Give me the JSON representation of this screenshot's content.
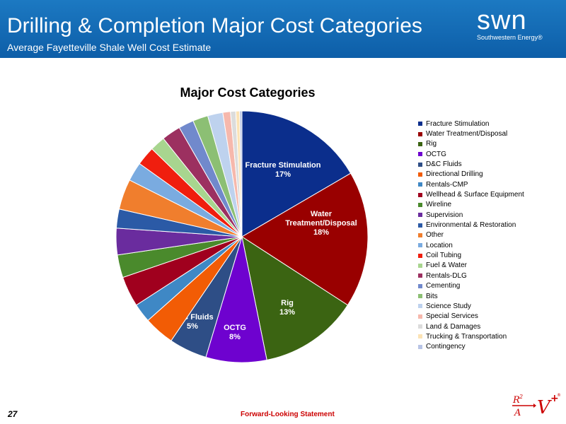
{
  "header": {
    "title": "Drilling & Completion Major Cost Categories",
    "subtitle": "Average Fayetteville Shale Well Cost Estimate",
    "logo_text": "swn",
    "logo_subtext": "Southwestern Energy®"
  },
  "colors": {
    "header_bg": "#0d5ea8",
    "footer_link": "#cc0000"
  },
  "chart_data": {
    "type": "pie",
    "title": "Major Cost Categories",
    "legend_position": "right",
    "slices": [
      {
        "name": "Fracture Stimulation",
        "value": 17,
        "color": "#0b2e8c",
        "label": "Fracture Stimulation\n17%",
        "label_color": "#ffffff"
      },
      {
        "name": "Water Treatment/Disposal",
        "value": 18,
        "color": "#990000",
        "label": "Water\nTreatment/Disposal\n18%",
        "label_color": "#ffffff"
      },
      {
        "name": "Rig",
        "value": 13,
        "color": "#3b6412",
        "label": "Rig\n13%",
        "label_color": "#ffffff"
      },
      {
        "name": "OCTG",
        "value": 8,
        "color": "#6e02cf",
        "label": "OCTG\n8%",
        "label_color": "#ffffff"
      },
      {
        "name": "D&C Fluids",
        "value": 5,
        "color": "#2e4e86",
        "label": "D&C Fluids\n5%",
        "label_color": "#ffffff"
      },
      {
        "name": "Directional Drilling",
        "value": 4,
        "color": "#f25c05",
        "label": "",
        "label_color": "#ffffff"
      },
      {
        "name": "Rentals-CMP",
        "value": 2.5,
        "color": "#3f88c5",
        "label": "",
        "label_color": "#ffffff"
      },
      {
        "name": "Wellhead & Surface Equipment",
        "value": 4,
        "color": "#a0001e",
        "label": "",
        "label_color": "#ffffff"
      },
      {
        "name": "Wireline",
        "value": 3,
        "color": "#4a8a2c",
        "label": "",
        "label_color": "#ffffff"
      },
      {
        "name": "Supervision",
        "value": 3.5,
        "color": "#6a2c9e",
        "label": "",
        "label_color": "#ffffff"
      },
      {
        "name": "Environmental & Restoration",
        "value": 2.5,
        "color": "#2b5aa6",
        "label": "",
        "label_color": "#ffffff"
      },
      {
        "name": "Other",
        "value": 4,
        "color": "#f07e2d",
        "label": "",
        "label_color": "#ffffff"
      },
      {
        "name": "Location",
        "value": 2.5,
        "color": "#7aabe0",
        "label": "",
        "label_color": "#ffffff"
      },
      {
        "name": "Coil Tubing",
        "value": 2.5,
        "color": "#f01e0e",
        "label": "",
        "label_color": "#ffffff"
      },
      {
        "name": "Fuel & Water",
        "value": 2,
        "color": "#a8d58f",
        "label": "",
        "label_color": "#ffffff"
      },
      {
        "name": "Rentals-DLG",
        "value": 2.5,
        "color": "#9c3060",
        "label": "",
        "label_color": "#ffffff"
      },
      {
        "name": "Cementing",
        "value": 2,
        "color": "#7189cc",
        "label": "",
        "label_color": "#ffffff"
      },
      {
        "name": "Bits",
        "value": 2,
        "color": "#8cbf74",
        "label": "",
        "label_color": "#ffffff"
      },
      {
        "name": "Science Study",
        "value": 2,
        "color": "#bed2ee",
        "label": "",
        "label_color": "#ffffff"
      },
      {
        "name": "Special Services",
        "value": 1,
        "color": "#f6b8ac",
        "label": "",
        "label_color": "#ffffff"
      },
      {
        "name": "Land & Damages",
        "value": 0.7,
        "color": "#dcdcdc",
        "label": "",
        "label_color": "#ffffff"
      },
      {
        "name": "Trucking & Transportation",
        "value": 0.5,
        "color": "#fce3b5",
        "label": "",
        "label_color": "#ffffff"
      },
      {
        "name": "Contingency",
        "value": 0.3,
        "color": "#b8c4e6",
        "label": "",
        "label_color": "#ffffff"
      }
    ]
  },
  "footer": {
    "page_number": "27",
    "link_text": "Forward-Looking Statement"
  }
}
